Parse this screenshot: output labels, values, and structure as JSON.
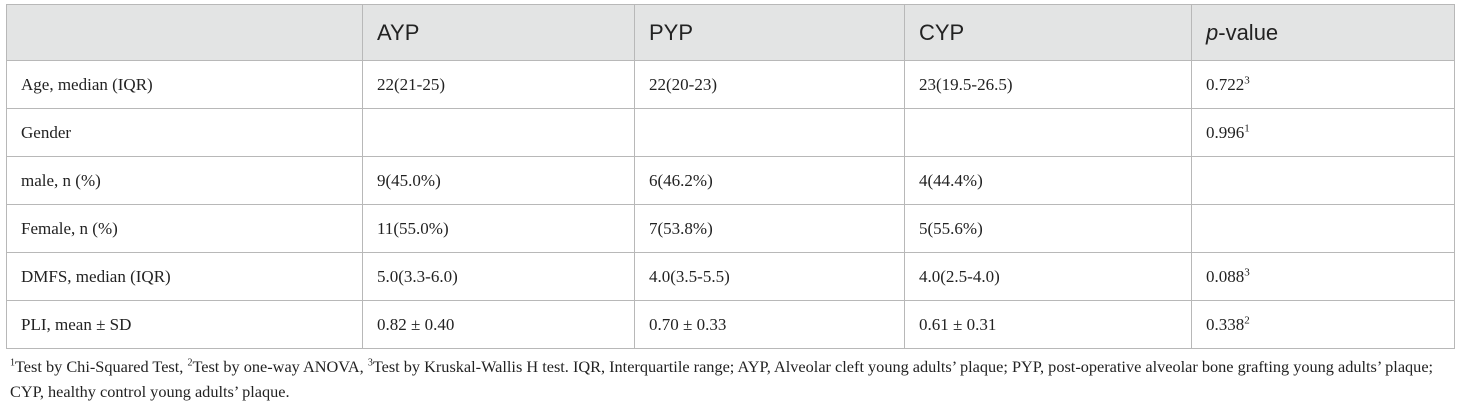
{
  "table": {
    "headers": {
      "col0": "",
      "col1": "AYP",
      "col2": "PYP",
      "col3": "CYP",
      "col4_italic": "p",
      "col4_rest": "-value"
    },
    "rows": [
      {
        "label": "Age, median (IQR)",
        "ayp": "22(21-25)",
        "pyp": "22(20-23)",
        "cyp": "23(19.5-26.5)",
        "p": "0.722",
        "p_sup": "3"
      },
      {
        "label": "Gender",
        "ayp": "",
        "pyp": "",
        "cyp": "",
        "p": "0.996",
        "p_sup": "1"
      },
      {
        "label": "male, n (%)",
        "ayp": "9(45.0%)",
        "pyp": "6(46.2%)",
        "cyp": "4(44.4%)",
        "p": "",
        "p_sup": ""
      },
      {
        "label": "Female, n (%)",
        "ayp": "11(55.0%)",
        "pyp": "7(53.8%)",
        "cyp": "5(55.6%)",
        "p": "",
        "p_sup": ""
      },
      {
        "label": "DMFS, median (IQR)",
        "ayp": "5.0(3.3-6.0)",
        "pyp": "4.0(3.5-5.5)",
        "cyp": "4.0(2.5-4.0)",
        "p": "0.088",
        "p_sup": "3"
      },
      {
        "label": "PLI, mean ± SD",
        "ayp": "0.82 ± 0.40",
        "pyp": "0.70 ± 0.33",
        "cyp": "0.61 ± 0.31",
        "p": "0.338",
        "p_sup": "2"
      }
    ]
  },
  "footnote": {
    "sup1": "1",
    "text1": "Test by Chi-Squared Test, ",
    "sup2": "2",
    "text2": "Test by one-way ANOVA, ",
    "sup3": "3",
    "text3": "Test by Kruskal-Wallis H test. IQR, Interquartile range; AYP, Alveolar cleft young adults’ plaque; PYP, post-operative alveolar bone grafting young adults’ plaque; CYP, healthy control young adults’ plaque."
  }
}
